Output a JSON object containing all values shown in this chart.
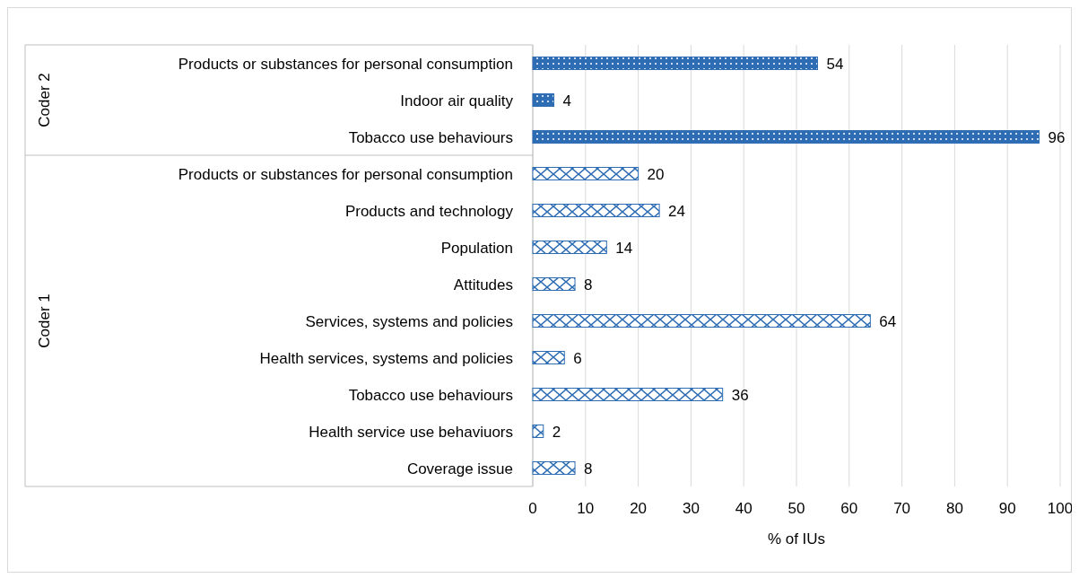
{
  "chart_data": {
    "type": "bar",
    "orientation": "horizontal",
    "categories": [
      "Products or substances for personal consumption",
      "Indoor air quality",
      "Tobacco use behaviours",
      "Products or substances for personal consumption",
      "Products and technology",
      "Population",
      "Attitudes",
      "Services, systems and policies",
      "Health services, systems and policies",
      "Tobacco use behaviours",
      "Health service use behaviuors",
      "Coverage issue"
    ],
    "series": [
      {
        "color": "#2e6db4",
        "values": [
          54,
          4,
          96,
          null,
          null,
          null,
          null,
          null,
          null,
          null,
          null,
          null
        ]
      },
      {
        "color": "#2e6db4",
        "values": [
          null,
          null,
          null,
          20,
          24,
          14,
          8,
          64,
          6,
          36,
          2,
          8
        ]
      }
    ],
    "xlim": [
      0,
      100
    ],
    "xticks": [
      0,
      10,
      20,
      30,
      40,
      50,
      60,
      70,
      80,
      90,
      100
    ],
    "xlabel": "% of IUs",
    "grid": "x",
    "data_labels": true,
    "annotations": [
      "Coder 2",
      "Coder 1"
    ]
  }
}
